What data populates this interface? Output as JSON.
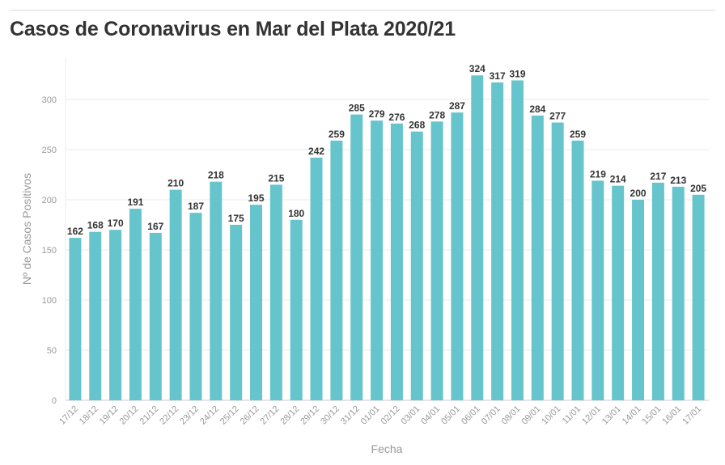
{
  "chart_data": {
    "type": "bar",
    "title": "Casos de Coronavirus en Mar del Plata 2020/21",
    "xlabel": "Fecha",
    "ylabel": "Nº de Casos Positivos",
    "ylim": [
      0,
      340
    ],
    "yticks": [
      0,
      50,
      100,
      150,
      200,
      250,
      300
    ],
    "grid": true,
    "bar_color": "#66c5cc",
    "categories": [
      "17/12",
      "18/12",
      "19/12",
      "20/12",
      "21/12",
      "22/12",
      "23/12",
      "24/12",
      "25/12",
      "26/12",
      "27/12",
      "28/12",
      "29/12",
      "30/12",
      "31/12",
      "01/01",
      "02/12",
      "03/01",
      "04/01",
      "05/01",
      "06/01",
      "07/01",
      "08/01",
      "09/01",
      "10/01",
      "11/01",
      "12/01",
      "13/01",
      "14/01",
      "15/01",
      "16/01",
      "17/01"
    ],
    "values": [
      162,
      168,
      170,
      191,
      167,
      210,
      187,
      218,
      175,
      195,
      215,
      180,
      242,
      259,
      285,
      279,
      276,
      268,
      278,
      287,
      324,
      317,
      319,
      284,
      277,
      259,
      219,
      214,
      200,
      217,
      213,
      205
    ]
  }
}
